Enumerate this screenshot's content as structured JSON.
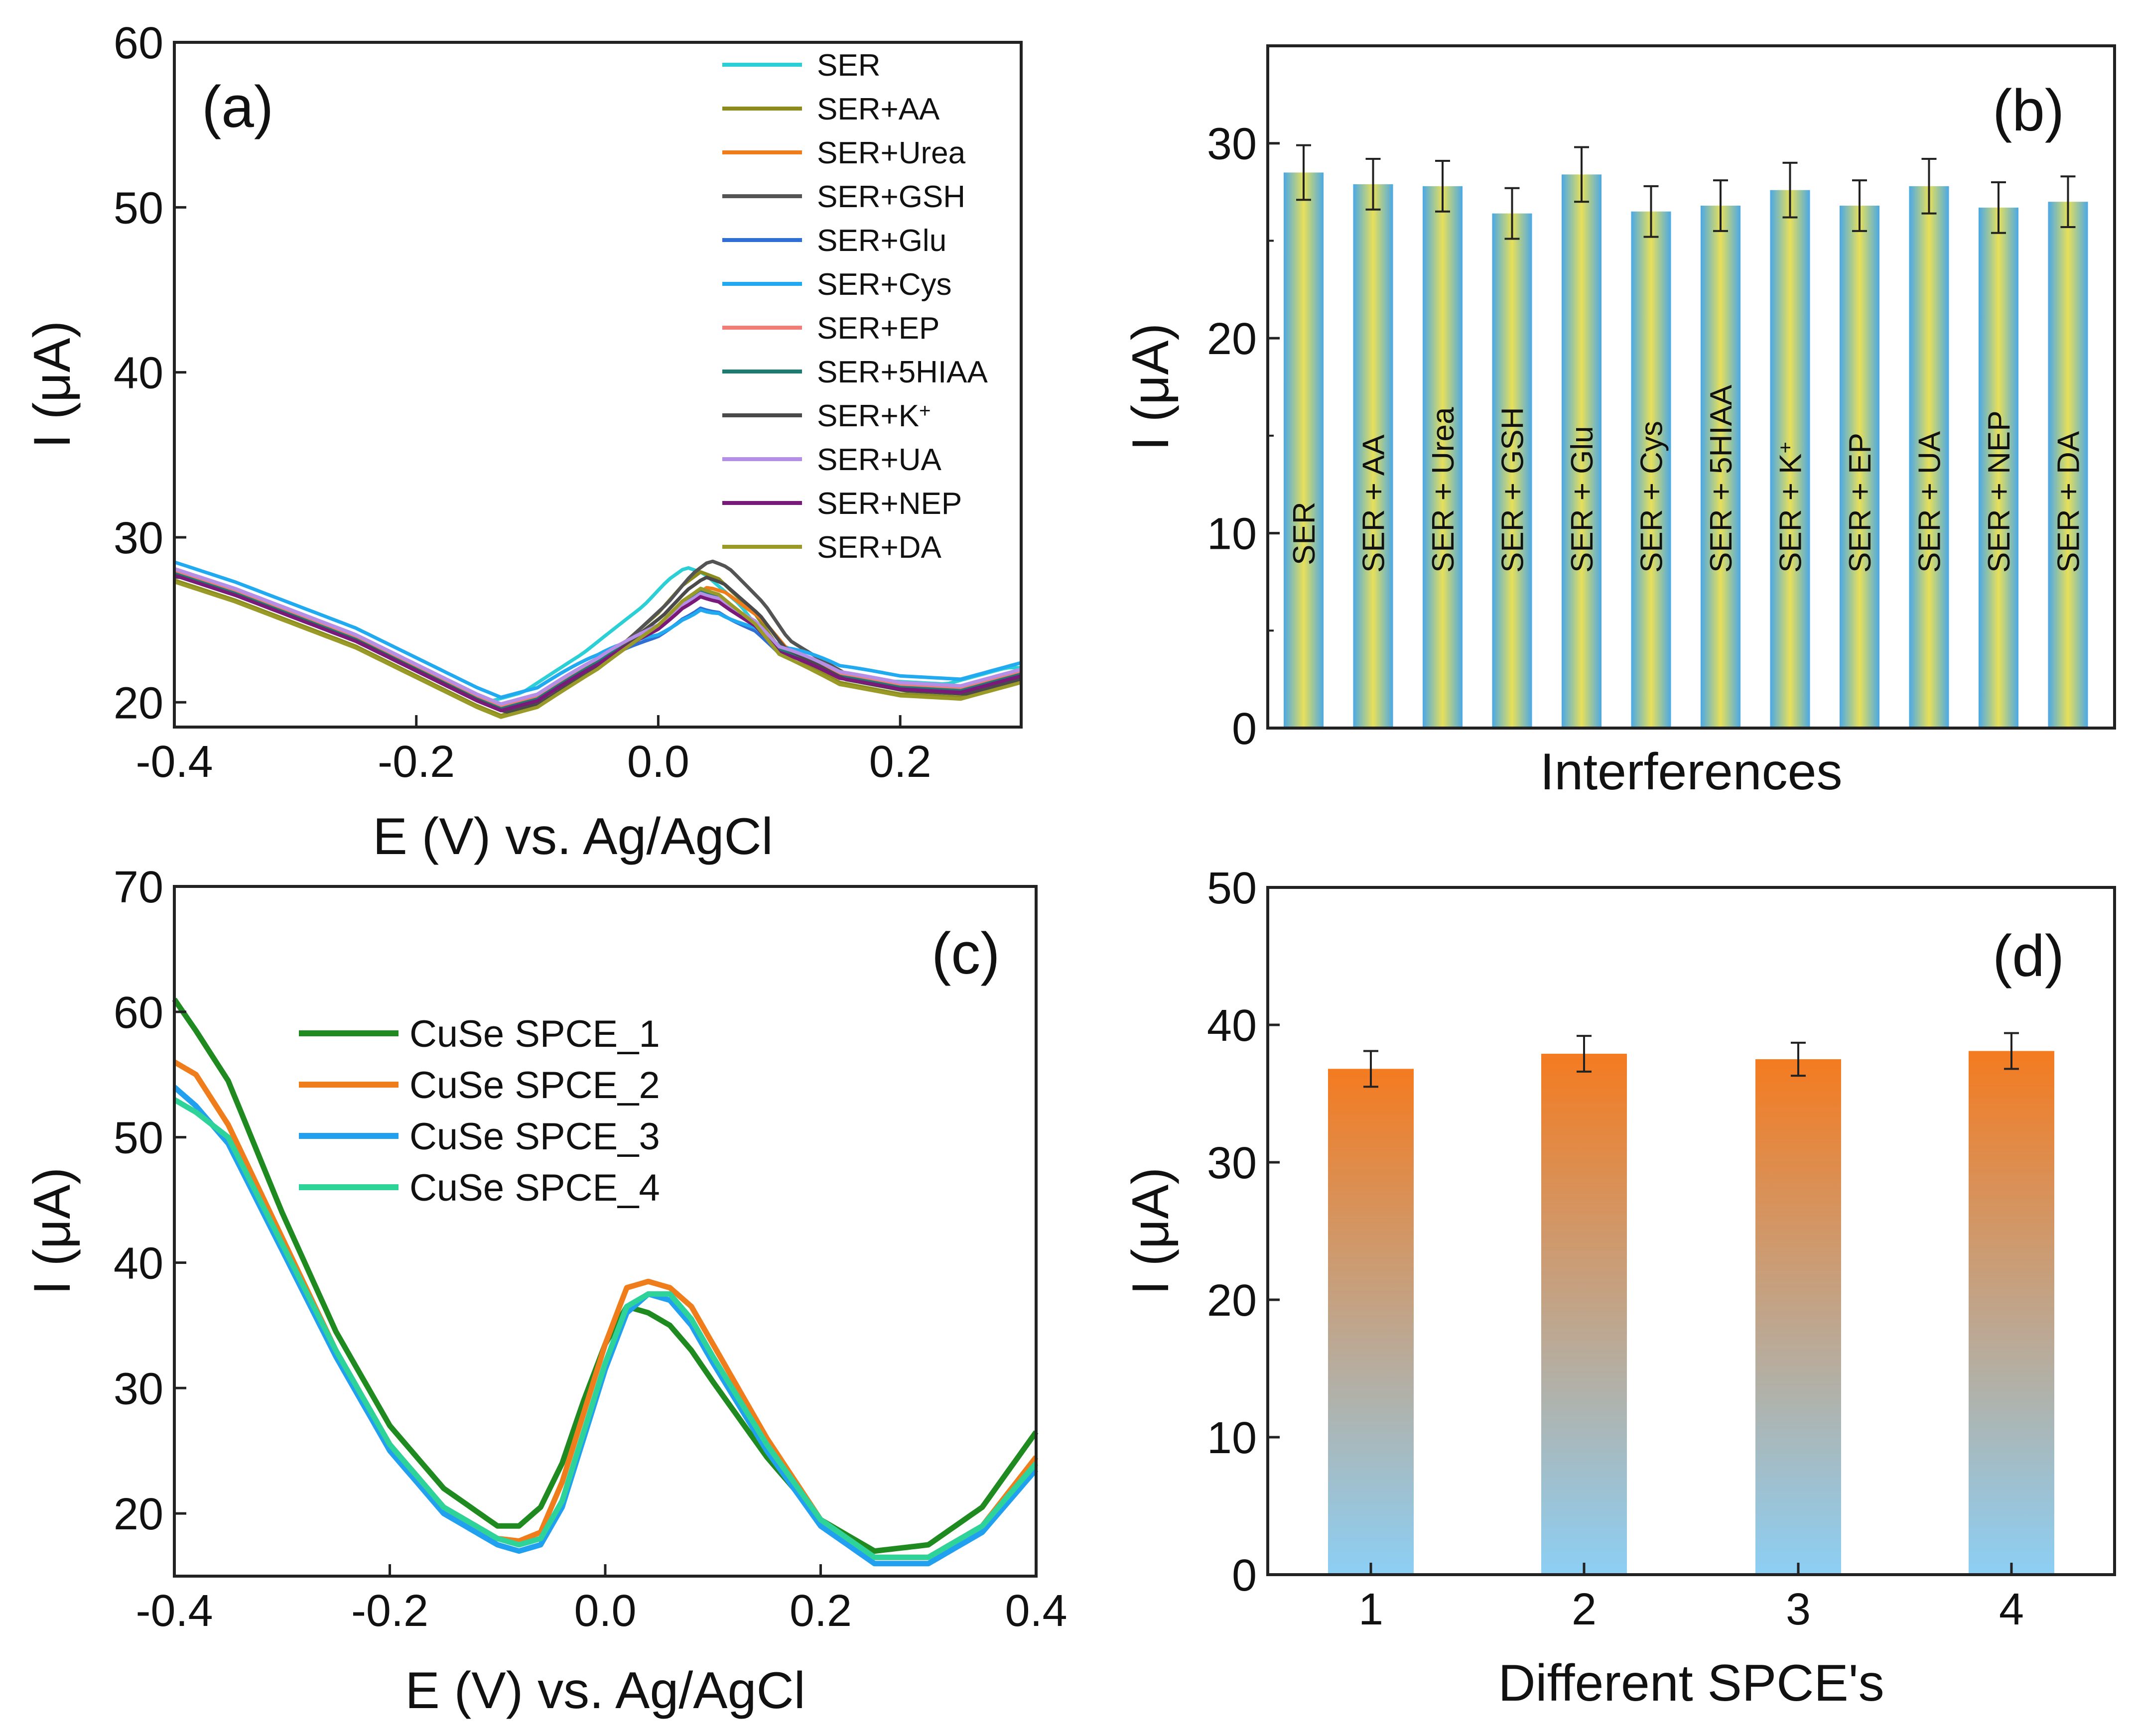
{
  "chart_data": [
    {
      "id": "a",
      "type": "line",
      "panel_label": "(a)",
      "xlabel": "E (V) vs. Ag/AgCl",
      "ylabel": "I (μA)",
      "xlim": [
        -0.4,
        0.3
      ],
      "ylim": [
        18.5,
        60
      ],
      "xticks": [
        -0.4,
        -0.2,
        0.0,
        0.2
      ],
      "xtick_labels": [
        "-0.4",
        "-0.2",
        "0.0",
        "0.2"
      ],
      "yticks": [
        20,
        30,
        40,
        50,
        60
      ],
      "ytick_labels": [
        "20",
        "30",
        "40",
        "50",
        "60"
      ],
      "legend_position": "top-right",
      "x": [
        -0.4,
        -0.35,
        -0.3,
        -0.25,
        -0.2,
        -0.15,
        -0.13,
        -0.1,
        -0.05,
        0.0,
        0.02,
        0.035,
        0.05,
        0.08,
        0.1,
        0.15,
        0.2,
        0.25,
        0.3
      ],
      "base_curve": [
        27.8,
        26.6,
        25.2,
        23.8,
        22.0,
        20.2,
        19.6,
        20.2,
        22.6,
        25.6,
        27.2,
        28.0,
        27.6,
        25.6,
        23.6,
        21.6,
        20.9,
        20.7,
        21.7
      ],
      "series": [
        {
          "name": "SER",
          "label_main": "SER",
          "label_sup": "",
          "color": "#2ccfd6",
          "peak": 28.2,
          "offset": 0.4,
          "shift": -0.012
        },
        {
          "name": "SER+AA",
          "label_main": "SER+AA",
          "label_sup": "",
          "color": "#8c8c1e",
          "peak": 27.9,
          "offset": -0.4,
          "shift": 0.0
        },
        {
          "name": "SER+Urea",
          "label_main": "SER+Urea",
          "label_sup": "",
          "color": "#f07d1c",
          "peak": 27.0,
          "offset": 0.0,
          "shift": 0.006
        },
        {
          "name": "SER+GSH",
          "label_main": "SER+GSH",
          "label_sup": "",
          "color": "#545454",
          "peak": 28.6,
          "offset": 0.0,
          "shift": 0.008
        },
        {
          "name": "SER+Glu",
          "label_main": "SER+Glu",
          "label_sup": "",
          "color": "#2f6fd4",
          "peak": 25.7,
          "offset": 0.1,
          "shift": 0.0
        },
        {
          "name": "SER+Cys",
          "label_main": "SER+Cys",
          "label_sup": "",
          "color": "#22aaf0",
          "peak": 25.6,
          "offset": 0.7,
          "shift": 0.0
        },
        {
          "name": "SER+EP",
          "label_main": "SER+EP",
          "label_sup": "",
          "color": "#f07d76",
          "peak": 26.5,
          "offset": 0.2,
          "shift": 0.0
        },
        {
          "name": "SER+5HIAA",
          "label_main": "SER+5HIAA",
          "label_sup": "",
          "color": "#1f7a72",
          "peak": 26.7,
          "offset": 0.0,
          "shift": 0.0
        },
        {
          "name": "SER+K+",
          "label_main": "SER+K",
          "label_sup": "+",
          "color": "#4a4a4a",
          "peak": 27.6,
          "offset": -0.2,
          "shift": 0.004
        },
        {
          "name": "SER+UA",
          "label_main": "SER+UA",
          "label_sup": "",
          "color": "#b58fe6",
          "peak": 26.6,
          "offset": 0.3,
          "shift": 0.0
        },
        {
          "name": "SER+NEP",
          "label_main": "SER+NEP",
          "label_sup": "",
          "color": "#7a1a78",
          "peak": 26.4,
          "offset": -0.1,
          "shift": 0.0
        },
        {
          "name": "SER+DA",
          "label_main": "SER+DA",
          "label_sup": "",
          "color": "#9a9a28",
          "peak": 26.9,
          "offset": -0.5,
          "shift": 0.0
        }
      ]
    },
    {
      "id": "b",
      "type": "bar",
      "panel_label": "(b)",
      "xlabel": "Interferences",
      "ylabel": "I (μA)",
      "ylim": [
        0,
        35
      ],
      "yticks": [
        0,
        10,
        20,
        30
      ],
      "ytick_labels": [
        "0",
        "10",
        "20",
        "30"
      ],
      "categories": [
        "SER",
        "SER + AA",
        "SER + Urea",
        "SER + GSH",
        "SER + Glu",
        "SER + Cys",
        "SER + 5HIAA",
        "SER + K+",
        "SER + EP",
        "SER + UA",
        "SER + NEP",
        "SER + DA"
      ],
      "bar_labels": [
        {
          "main": "SER",
          "sup": ""
        },
        {
          "main": "SER + AA",
          "sup": ""
        },
        {
          "main": "SER + Urea",
          "sup": ""
        },
        {
          "main": "SER + GSH",
          "sup": ""
        },
        {
          "main": "SER + Glu",
          "sup": ""
        },
        {
          "main": "SER + Cys",
          "sup": ""
        },
        {
          "main": "SER + 5HIAA",
          "sup": ""
        },
        {
          "main": "SER + K",
          "sup": "+"
        },
        {
          "main": "SER + EP",
          "sup": ""
        },
        {
          "main": "SER + UA",
          "sup": ""
        },
        {
          "main": "SER + NEP",
          "sup": ""
        },
        {
          "main": "SER + DA",
          "sup": ""
        }
      ],
      "values": [
        28.5,
        27.9,
        27.8,
        26.4,
        28.4,
        26.5,
        26.8,
        27.6,
        26.8,
        27.8,
        26.7,
        27.0
      ],
      "errors": [
        1.4,
        1.3,
        1.3,
        1.3,
        1.4,
        1.3,
        1.3,
        1.4,
        1.3,
        1.4,
        1.3,
        1.3
      ],
      "colors": {
        "edge": "#4aa8e6",
        "center": "#e8e05a"
      }
    },
    {
      "id": "c",
      "type": "line",
      "panel_label": "(c)",
      "xlabel": "E (V) vs. Ag/AgCl",
      "ylabel": "I (μA)",
      "xlim": [
        -0.4,
        0.4
      ],
      "ylim": [
        15,
        70
      ],
      "xticks": [
        -0.4,
        -0.2,
        0.0,
        0.2,
        0.4
      ],
      "xtick_labels": [
        "-0.4",
        "-0.2",
        "0.0",
        "0.2",
        "0.4"
      ],
      "yticks": [
        20,
        30,
        40,
        50,
        60,
        70
      ],
      "ytick_labels": [
        "20",
        "30",
        "40",
        "50",
        "60",
        "70"
      ],
      "legend_position": "upper-left",
      "series": [
        {
          "name": "CuSe SPCE_1",
          "color": "#1f8a1f",
          "x": [
            -0.4,
            -0.38,
            -0.35,
            -0.3,
            -0.25,
            -0.2,
            -0.15,
            -0.1,
            -0.08,
            -0.06,
            -0.04,
            -0.02,
            0.0,
            0.02,
            0.04,
            0.06,
            0.08,
            0.1,
            0.15,
            0.2,
            0.25,
            0.3,
            0.35,
            0.4
          ],
          "y": [
            61.0,
            58.5,
            54.5,
            44.0,
            34.5,
            27.0,
            22.0,
            19.0,
            19.0,
            20.5,
            24.0,
            29.0,
            33.5,
            36.5,
            36.0,
            35.0,
            33.0,
            30.5,
            24.5,
            19.5,
            17.0,
            17.5,
            20.5,
            26.5
          ]
        },
        {
          "name": "CuSe SPCE_2",
          "color": "#f07d1c",
          "x": [
            -0.4,
            -0.38,
            -0.35,
            -0.3,
            -0.25,
            -0.2,
            -0.15,
            -0.1,
            -0.08,
            -0.06,
            -0.04,
            -0.02,
            0.0,
            0.02,
            0.04,
            0.06,
            0.08,
            0.1,
            0.15,
            0.2,
            0.25,
            0.3,
            0.35,
            0.4
          ],
          "y": [
            56.0,
            55.0,
            51.0,
            42.0,
            33.0,
            25.5,
            20.5,
            18.0,
            17.8,
            18.5,
            22.5,
            28.0,
            33.5,
            38.0,
            38.5,
            38.0,
            36.5,
            33.5,
            26.0,
            19.5,
            16.5,
            16.5,
            19.0,
            24.5
          ]
        },
        {
          "name": "CuSe SPCE_3",
          "color": "#22a0f0",
          "x": [
            -0.4,
            -0.38,
            -0.35,
            -0.3,
            -0.25,
            -0.2,
            -0.15,
            -0.1,
            -0.08,
            -0.06,
            -0.04,
            -0.02,
            0.0,
            0.02,
            0.04,
            0.06,
            0.08,
            0.1,
            0.15,
            0.2,
            0.25,
            0.3,
            0.35,
            0.4
          ],
          "y": [
            54.0,
            52.5,
            49.5,
            41.0,
            32.5,
            25.0,
            20.0,
            17.5,
            17.0,
            17.5,
            20.5,
            26.0,
            31.5,
            36.0,
            37.5,
            37.0,
            35.0,
            32.0,
            25.0,
            19.0,
            16.0,
            16.0,
            18.5,
            23.5
          ]
        },
        {
          "name": "CuSe SPCE_4",
          "color": "#2ed39a",
          "x": [
            -0.4,
            -0.38,
            -0.35,
            -0.3,
            -0.25,
            -0.2,
            -0.15,
            -0.1,
            -0.08,
            -0.06,
            -0.04,
            -0.02,
            0.0,
            0.02,
            0.04,
            0.06,
            0.08,
            0.1,
            0.15,
            0.2,
            0.25,
            0.3,
            0.35,
            0.4
          ],
          "y": [
            53.0,
            52.0,
            50.0,
            41.5,
            33.0,
            25.5,
            20.5,
            18.0,
            17.5,
            18.0,
            21.0,
            26.5,
            32.0,
            36.5,
            37.5,
            37.5,
            35.5,
            32.5,
            25.5,
            19.5,
            16.5,
            16.5,
            19.0,
            24.0
          ]
        }
      ]
    },
    {
      "id": "d",
      "type": "bar",
      "panel_label": "(d)",
      "xlabel": "Different SPCE's",
      "ylabel": "I (μA)",
      "ylim": [
        0,
        50
      ],
      "yticks": [
        0,
        10,
        20,
        30,
        40,
        50
      ],
      "ytick_labels": [
        "0",
        "10",
        "20",
        "30",
        "40",
        "50"
      ],
      "categories": [
        "1",
        "2",
        "3",
        "4"
      ],
      "values": [
        36.8,
        37.9,
        37.5,
        38.1
      ],
      "errors": [
        1.3,
        1.3,
        1.2,
        1.3
      ],
      "colors": {
        "top": "#f47b20",
        "bottom": "#8ccff5"
      }
    }
  ]
}
